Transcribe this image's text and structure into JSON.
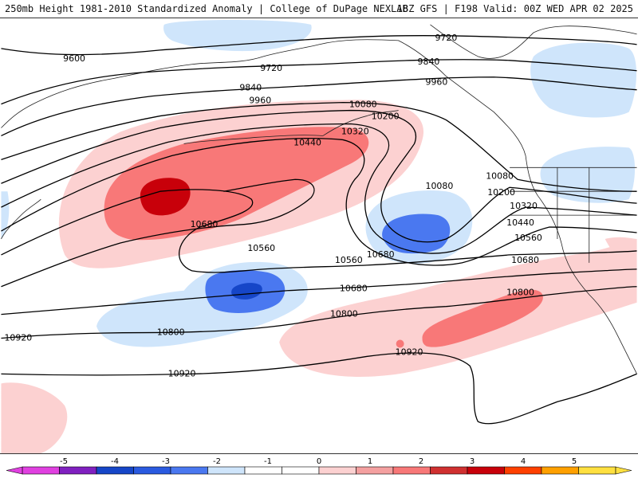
{
  "header": {
    "title_left": "250mb Height 1981-2010 Standardized Anomaly | College of DuPage NEXLAB",
    "title_right": "18Z GFS | F198 Valid: 00Z WED APR 02 2025"
  },
  "colors": {
    "pos1": "#fcd1d1",
    "pos2": "#f87878",
    "pos3": "#c8000a",
    "neg1": "#cfe5fb",
    "neg2": "#4a78f0",
    "neg3": "#1646c8",
    "contour": "#000000",
    "coast": "#222222"
  },
  "contour_labels": [
    "9600",
    "9720",
    "9720",
    "9840",
    "9840",
    "9960",
    "9960",
    "10080",
    "10080",
    "10080",
    "10200",
    "10200",
    "10320",
    "10320",
    "10440",
    "10440",
    "10560",
    "10560",
    "10560",
    "10680",
    "10680",
    "10680",
    "10680",
    "10800",
    "10800",
    "10800",
    "10920",
    "10920",
    "10920"
  ],
  "colorbar": {
    "ticks": [
      "-5",
      "-4",
      "-3",
      "-2",
      "-1",
      "0",
      "1",
      "2",
      "3",
      "4",
      "5"
    ],
    "colors": [
      "#e040e0",
      "#8020c0",
      "#1646c8",
      "#2a5ae0",
      "#4a78f0",
      "#cfe5fb",
      "#ffffff",
      "#ffffff",
      "#fcd1d1",
      "#f4a0a0",
      "#f87878",
      "#d03030",
      "#c8000a",
      "#ff4000",
      "#ffa000",
      "#ffe040"
    ]
  }
}
